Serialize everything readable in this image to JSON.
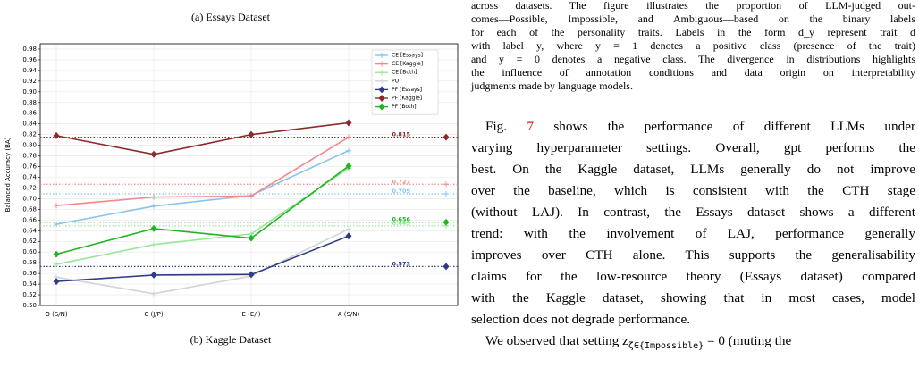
{
  "captions": {
    "a": "(a) Essays Dataset",
    "b": "(b) Kaggle Dataset"
  },
  "chart_data": {
    "type": "line",
    "ylabel": "Balanced Accuracy (BA)",
    "categories": [
      "O (S/N)",
      "C (J/P)",
      "E (E/I)",
      "A (S/N)"
    ],
    "ylim": [
      0.5,
      0.99
    ],
    "yticks": [
      {
        "value": 0.5,
        "label": "0.50"
      },
      0.52,
      0.54,
      0.56,
      0.58,
      {
        "value": 0.6,
        "label": "0.60"
      },
      0.62,
      0.64,
      0.66,
      0.68,
      {
        "value": 0.7,
        "label": "0.70"
      },
      0.72,
      0.74,
      0.76,
      0.78,
      {
        "value": 0.8,
        "label": "0.80"
      },
      0.82,
      0.84,
      0.86,
      0.88,
      {
        "value": 0.9,
        "label": "0.90"
      },
      0.92,
      0.94,
      0.96,
      0.98
    ],
    "grid": true,
    "legend": "upper right",
    "series": [
      {
        "name": "CE [Essays]",
        "color": "#87c4ee",
        "marker": "plus",
        "values": [
          0.652,
          0.686,
          0.706,
          0.79
        ],
        "baseline": 0.709
      },
      {
        "name": "CE [Kaggle]",
        "color": "#f08a8a",
        "marker": "plus",
        "values": [
          0.687,
          0.703,
          0.705,
          0.815
        ],
        "baseline": 0.727
      },
      {
        "name": "CE [Both]",
        "color": "#98e698",
        "marker": "plus",
        "values": [
          0.577,
          0.614,
          0.634,
          0.757
        ],
        "baseline": 0.649
      },
      {
        "name": "PO",
        "color": "#d3d3d3",
        "marker": "plus",
        "values": [
          0.553,
          0.522,
          0.555,
          0.643
        ]
      },
      {
        "name": "PF [Essays]",
        "color": "#2f3b87",
        "marker": "diamond",
        "values": [
          0.545,
          0.557,
          0.558,
          0.63
        ],
        "baseline": 0.573
      },
      {
        "name": "PF [Kaggle]",
        "color": "#8b2a2a",
        "marker": "diamond",
        "values": [
          0.818,
          0.783,
          0.82,
          0.842
        ],
        "baseline": 0.815
      },
      {
        "name": "PF [Both]",
        "color": "#22b522",
        "marker": "diamond",
        "values": [
          0.596,
          0.644,
          0.626,
          0.761
        ],
        "baseline": 0.656
      }
    ]
  },
  "caption_text": [
    "across datasets. The figure illustrates the proportion of LLM-judged out-",
    "comes—Possible, Impossible, and Ambiguous—based on the binary labels",
    "for each of the personality traits. Labels in the form d_y represent trait d",
    "with label y, where y = 1 denotes a positive class (presence of the trait)",
    "and y = 0 denotes a negative class. The divergence in distributions highlights",
    "the influence of annotation conditions and data origin on interpretability",
    "judgments made by language models."
  ],
  "body": {
    "first": [
      "Fig. ",
      "7",
      " shows the performance of different LLMs under"
    ],
    "lines": [
      "varying hyperparameter settings. Overall, gpt performs the",
      "best. On the Kaggle dataset, LLMs generally do not improve",
      "over the baseline, which is consistent with the CTH stage",
      "(without LAJ). In contrast, the Essays dataset shows a different",
      "trend: with the involvement of LAJ, performance generally",
      "improves over CTH alone. This supports the generalisability",
      "claims for the low-resource theory (Essays dataset) compared",
      "with the Kaggle dataset, showing that in most cases, model",
      "selection does not degrade performance."
    ],
    "last": [
      "We observed that setting z",
      "ζ∈{Impossible}",
      " = 0 (muting the"
    ]
  }
}
